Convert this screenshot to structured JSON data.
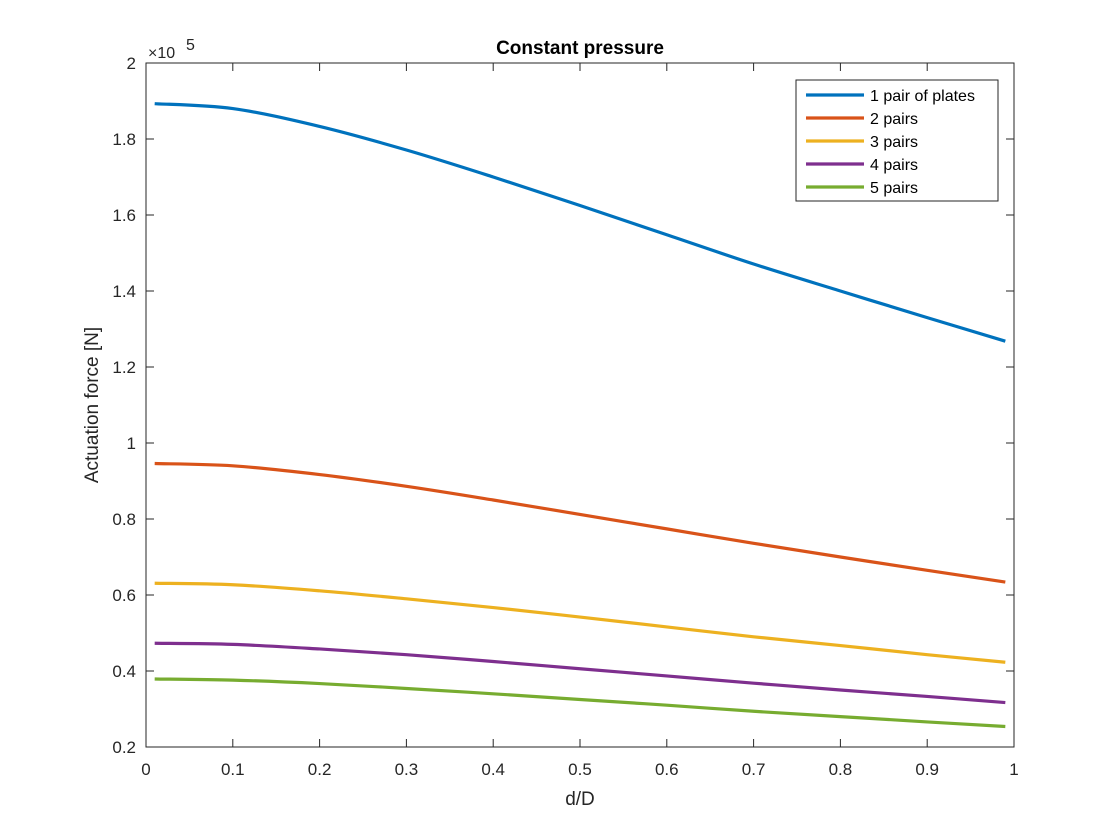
{
  "chart_data": {
    "type": "line",
    "title": "Constant pressure",
    "xlabel": "d/D",
    "ylabel": "Actuation force [N]",
    "y_exponent_label": "×10",
    "y_exponent_power": "5",
    "xlim": [
      0,
      1
    ],
    "ylim": [
      0.2,
      2.0
    ],
    "y_scale_factor": 100000,
    "xticks": [
      0,
      0.1,
      0.2,
      0.3,
      0.4,
      0.5,
      0.6,
      0.7,
      0.8,
      0.9,
      1
    ],
    "xtick_labels": [
      "0",
      "0.1",
      "0.2",
      "0.3",
      "0.4",
      "0.5",
      "0.6",
      "0.7",
      "0.8",
      "0.9",
      "1"
    ],
    "yticks": [
      0.2,
      0.4,
      0.6,
      0.8,
      1.0,
      1.2,
      1.4,
      1.6,
      1.8,
      2.0
    ],
    "ytick_labels": [
      "0.2",
      "0.4",
      "0.6",
      "0.8",
      "1",
      "1.2",
      "1.4",
      "1.6",
      "1.8",
      "2"
    ],
    "grid": false,
    "legend_position": "top-right",
    "x": [
      0.01,
      0.1,
      0.2,
      0.3,
      0.4,
      0.5,
      0.6,
      0.7,
      0.8,
      0.9,
      0.99
    ],
    "series": [
      {
        "name": "1 pair of plates",
        "color": "#0072BD",
        "values": [
          1.893,
          1.88,
          1.833,
          1.771,
          1.7,
          1.625,
          1.548,
          1.471,
          1.4,
          1.33,
          1.268
        ]
      },
      {
        "name": "2 pairs",
        "color": "#D95319",
        "values": [
          0.946,
          0.94,
          0.917,
          0.886,
          0.85,
          0.812,
          0.774,
          0.736,
          0.7,
          0.665,
          0.634
        ]
      },
      {
        "name": "3 pairs",
        "color": "#EDB120",
        "values": [
          0.631,
          0.627,
          0.611,
          0.59,
          0.567,
          0.542,
          0.516,
          0.49,
          0.467,
          0.443,
          0.423
        ]
      },
      {
        "name": "4 pairs",
        "color": "#7E2F8E",
        "values": [
          0.473,
          0.47,
          0.458,
          0.443,
          0.425,
          0.406,
          0.387,
          0.368,
          0.35,
          0.333,
          0.317
        ]
      },
      {
        "name": "5 pairs",
        "color": "#77AC30",
        "values": [
          0.379,
          0.376,
          0.367,
          0.354,
          0.34,
          0.325,
          0.31,
          0.294,
          0.28,
          0.266,
          0.254
        ]
      }
    ]
  }
}
